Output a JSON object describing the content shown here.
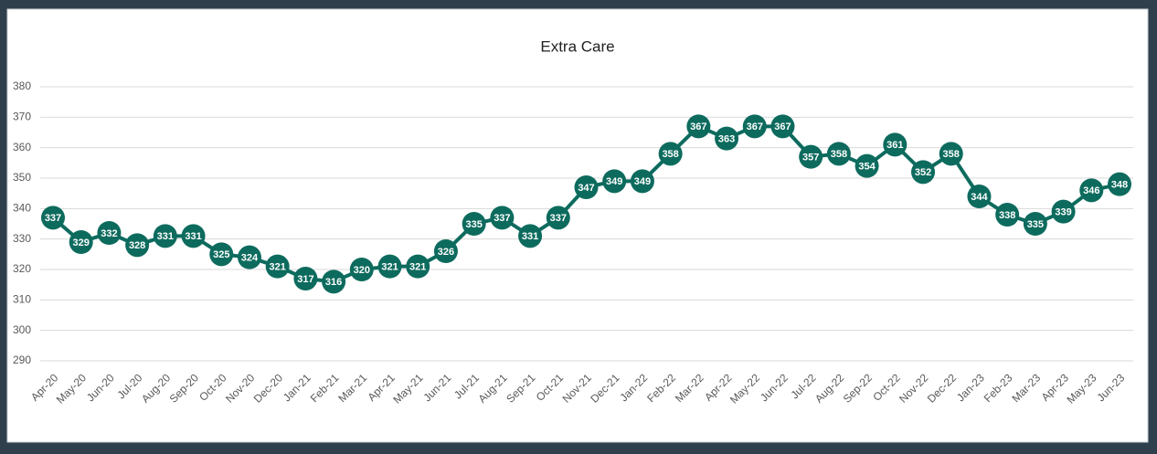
{
  "chart_data": {
    "type": "line",
    "title": "Extra Care",
    "categories": [
      "Apr-20",
      "May-20",
      "Jun-20",
      "Jul-20",
      "Aug-20",
      "Sep-20",
      "Oct-20",
      "Nov-20",
      "Dec-20",
      "Jan-21",
      "Feb-21",
      "Mar-21",
      "Apr-21",
      "May-21",
      "Jun-21",
      "Jul-21",
      "Aug-21",
      "Sep-21",
      "Oct-21",
      "Nov-21",
      "Dec-21",
      "Jan-22",
      "Feb-22",
      "Mar-22",
      "Apr-22",
      "May-22",
      "Jun-22",
      "Jul-22",
      "Aug-22",
      "Sep-22",
      "Oct-22",
      "Nov-22",
      "Dec-22",
      "Jan-23",
      "Feb-23",
      "Mar-23",
      "Apr-23",
      "May-23",
      "Jun-23"
    ],
    "values": [
      337,
      329,
      332,
      328,
      331,
      331,
      325,
      324,
      321,
      317,
      316,
      320,
      321,
      321,
      326,
      335,
      337,
      331,
      337,
      347,
      349,
      349,
      358,
      367,
      363,
      367,
      367,
      357,
      358,
      354,
      361,
      352,
      358,
      344,
      338,
      335,
      339,
      346,
      348
    ],
    "color": "#0d6b5e",
    "ylim": [
      290,
      380
    ],
    "yticks": [
      290,
      300,
      310,
      320,
      330,
      340,
      350,
      360,
      370,
      380
    ],
    "grid": true
  }
}
